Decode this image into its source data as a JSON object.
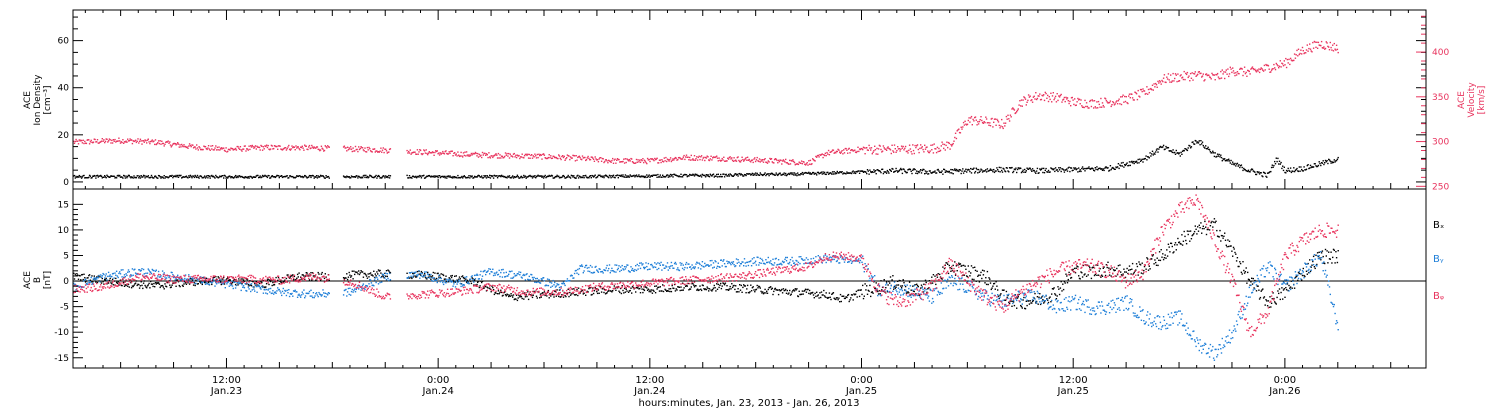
{
  "colors": {
    "black": "#000000",
    "pink": "#e8345e",
    "blue": "#1f7fd8"
  },
  "x_axis": {
    "label": "hours:minutes, Jan. 23, 2013 - Jan. 26, 2013",
    "ticks": [
      {
        "t": 12,
        "time": "12:00",
        "day": "Jan.23"
      },
      {
        "t": 24,
        "time": "0:00",
        "day": "Jan.24"
      },
      {
        "t": 36,
        "time": "12:00",
        "day": "Jan.24"
      },
      {
        "t": 48,
        "time": "0:00",
        "day": "Jan.25"
      },
      {
        "t": 60,
        "time": "12:00",
        "day": "Jan.25"
      },
      {
        "t": 72,
        "time": "0:00",
        "day": "Jan.26"
      }
    ],
    "xlim": [
      3.3,
      80
    ]
  },
  "chart_data": [
    {
      "type": "scatter",
      "panel": "top",
      "ylabel_left": [
        "ACE",
        "Ion Density",
        "[cm⁻³]"
      ],
      "ylabel_right": [
        "ACE",
        "Velocity",
        "[km/s]"
      ],
      "ylim_left": [
        -3,
        73
      ],
      "yticks_left": [
        0,
        20,
        40,
        60
      ],
      "ylim_right": [
        247,
        447
      ],
      "yticks_right": [
        250,
        300,
        350,
        400
      ],
      "series": [
        {
          "axis": "left",
          "color": "black",
          "points": [
            [
              3.3,
              2.5
            ],
            [
              8,
              2.5
            ],
            [
              12,
              2.5
            ],
            [
              16,
              2.5
            ],
            [
              20,
              2.5
            ],
            [
              24,
              2.5
            ],
            [
              28,
              2.5
            ],
            [
              32,
              2.5
            ],
            [
              36,
              2.8
            ],
            [
              38,
              3
            ],
            [
              40,
              3
            ],
            [
              42,
              3.5
            ],
            [
              44,
              3.5
            ],
            [
              46,
              4
            ],
            [
              48,
              4.5
            ],
            [
              50,
              5
            ],
            [
              52,
              4.5
            ],
            [
              54,
              5
            ],
            [
              56,
              5.5
            ],
            [
              58,
              5
            ],
            [
              60,
              5.5
            ],
            [
              62,
              6
            ],
            [
              63,
              8
            ],
            [
              64,
              10
            ],
            [
              65,
              15
            ],
            [
              66,
              12
            ],
            [
              67,
              18
            ],
            [
              68,
              12
            ],
            [
              69,
              8
            ],
            [
              70,
              5
            ],
            [
              71,
              3
            ],
            [
              71.5,
              10
            ],
            [
              72,
              5
            ],
            [
              73,
              6
            ],
            [
              74,
              8
            ],
            [
              75,
              10
            ]
          ]
        },
        {
          "axis": "right",
          "color": "pink",
          "points": [
            [
              3.3,
              300
            ],
            [
              6,
              302
            ],
            [
              8,
              300
            ],
            [
              10,
              295
            ],
            [
              12,
              292
            ],
            [
              14,
              294
            ],
            [
              16,
              294
            ],
            [
              18,
              293
            ],
            [
              20,
              292
            ],
            [
              22,
              290
            ],
            [
              24,
              288
            ],
            [
              26,
              286
            ],
            [
              28,
              285
            ],
            [
              30,
              284
            ],
            [
              32,
              282
            ],
            [
              34,
              279
            ],
            [
              36,
              279
            ],
            [
              38,
              283
            ],
            [
              40,
              282
            ],
            [
              42,
              280
            ],
            [
              44,
              278
            ],
            [
              45,
              277
            ],
            [
              46,
              288
            ],
            [
              48,
              292
            ],
            [
              50,
              292
            ],
            [
              52,
              293
            ],
            [
              53,
              297
            ],
            [
              54,
              325
            ],
            [
              55,
              323
            ],
            [
              56,
              320
            ],
            [
              57,
              345
            ],
            [
              58,
              352
            ],
            [
              59,
              350
            ],
            [
              60,
              345
            ],
            [
              61,
              343
            ],
            [
              62,
              345
            ],
            [
              63,
              348
            ],
            [
              64,
              355
            ],
            [
              65,
              370
            ],
            [
              66,
              373
            ],
            [
              67,
              375
            ],
            [
              68,
              372
            ],
            [
              69,
              380
            ],
            [
              70,
              378
            ],
            [
              71,
              383
            ],
            [
              72,
              388
            ],
            [
              73,
              403
            ],
            [
              74,
              410
            ],
            [
              75,
              405
            ]
          ]
        }
      ]
    },
    {
      "type": "scatter",
      "panel": "bottom",
      "ylabel_left": [
        "ACE",
        "B",
        "[nT]"
      ],
      "ylim": [
        -17,
        18
      ],
      "yticks": [
        -15,
        -10,
        -5,
        0,
        5,
        10,
        15
      ],
      "zero_line": true,
      "legend": [
        "Bₓ",
        "Bᵧ",
        "Bᵩ"
      ],
      "series": [
        {
          "name": "Bₓ",
          "color": "black",
          "points": [
            [
              3.3,
              1
            ],
            [
              6,
              -0.2
            ],
            [
              8,
              -0.8
            ],
            [
              10,
              0
            ],
            [
              12,
              0.3
            ],
            [
              14,
              -0.5
            ],
            [
              16,
              1
            ],
            [
              18,
              1
            ],
            [
              20,
              1.5
            ],
            [
              22,
              1.5
            ],
            [
              24,
              1
            ],
            [
              26,
              0
            ],
            [
              28,
              -3
            ],
            [
              30,
              -2.5
            ],
            [
              32,
              -2
            ],
            [
              34,
              -1.5
            ],
            [
              36,
              -1.5
            ],
            [
              38,
              -1
            ],
            [
              40,
              -1
            ],
            [
              42,
              -1.5
            ],
            [
              44,
              -2
            ],
            [
              46,
              -2.5
            ],
            [
              47,
              -3.5
            ],
            [
              48,
              -2
            ],
            [
              49,
              -1
            ],
            [
              50,
              0
            ],
            [
              51,
              -2
            ],
            [
              52,
              0
            ],
            [
              53,
              3
            ],
            [
              54,
              2
            ],
            [
              55,
              1
            ],
            [
              56,
              -3
            ],
            [
              57,
              -4
            ],
            [
              58,
              -3.5
            ],
            [
              59,
              -2
            ],
            [
              60,
              2
            ],
            [
              61,
              2
            ],
            [
              62,
              2.5
            ],
            [
              63,
              2
            ],
            [
              64,
              3
            ],
            [
              65,
              5
            ],
            [
              66,
              8
            ],
            [
              67,
              10
            ],
            [
              68,
              11
            ],
            [
              69,
              6
            ],
            [
              70,
              0
            ],
            [
              71,
              -4
            ],
            [
              72,
              -2
            ],
            [
              73,
              2
            ],
            [
              74,
              5
            ],
            [
              75,
              5
            ]
          ]
        },
        {
          "name": "Bᵧ",
          "color": "blue",
          "points": [
            [
              3.3,
              -1
            ],
            [
              5,
              1
            ],
            [
              7,
              2
            ],
            [
              9,
              1
            ],
            [
              11,
              0
            ],
            [
              13,
              -1
            ],
            [
              15,
              -2
            ],
            [
              17,
              -2.5
            ],
            [
              19,
              -2
            ],
            [
              21,
              1
            ],
            [
              23,
              1.5
            ],
            [
              25,
              -0.5
            ],
            [
              27,
              2
            ],
            [
              29,
              1
            ],
            [
              31,
              -1
            ],
            [
              32,
              2.5
            ],
            [
              34,
              2.5
            ],
            [
              36,
              3
            ],
            [
              38,
              3
            ],
            [
              40,
              3.5
            ],
            [
              42,
              4
            ],
            [
              44,
              4
            ],
            [
              46,
              4.5
            ],
            [
              48,
              4
            ],
            [
              49,
              -2
            ],
            [
              50,
              -1
            ],
            [
              51,
              -2
            ],
            [
              52,
              -3
            ],
            [
              53,
              0
            ],
            [
              54,
              -1
            ],
            [
              55,
              -3
            ],
            [
              56,
              -4
            ],
            [
              57,
              -3
            ],
            [
              58,
              -3
            ],
            [
              59,
              -5
            ],
            [
              60,
              -4
            ],
            [
              61,
              -5
            ],
            [
              62,
              -5
            ],
            [
              63,
              -4
            ],
            [
              64,
              -7
            ],
            [
              65,
              -8
            ],
            [
              66,
              -7
            ],
            [
              67,
              -12
            ],
            [
              68,
              -14
            ],
            [
              69,
              -10
            ],
            [
              70,
              -2
            ],
            [
              71,
              3
            ],
            [
              72,
              -1
            ],
            [
              73,
              2
            ],
            [
              74,
              5
            ],
            [
              75,
              -9
            ]
          ]
        },
        {
          "name": "Bᵩ",
          "color": "pink",
          "points": [
            [
              3.3,
              -1.5
            ],
            [
              5,
              -1
            ],
            [
              7,
              1
            ],
            [
              9,
              0.5
            ],
            [
              11,
              0.5
            ],
            [
              13,
              0.5
            ],
            [
              15,
              0.3
            ],
            [
              17,
              1
            ],
            [
              19,
              0
            ],
            [
              21,
              -3
            ],
            [
              23,
              -2.5
            ],
            [
              25,
              -2
            ],
            [
              27,
              -1
            ],
            [
              29,
              -2
            ],
            [
              31,
              -2
            ],
            [
              33,
              -1
            ],
            [
              35,
              -0.5
            ],
            [
              37,
              0
            ],
            [
              39,
              0.5
            ],
            [
              41,
              1
            ],
            [
              43,
              2
            ],
            [
              45,
              3
            ],
            [
              46,
              5
            ],
            [
              47,
              5
            ],
            [
              48,
              4.5
            ],
            [
              49,
              -2
            ],
            [
              50,
              -4
            ],
            [
              51,
              -3
            ],
            [
              52,
              -1
            ],
            [
              53,
              3.5
            ],
            [
              54,
              0
            ],
            [
              55,
              -3
            ],
            [
              56,
              -5
            ],
            [
              57,
              -2
            ],
            [
              58,
              0
            ],
            [
              59,
              2
            ],
            [
              60,
              3
            ],
            [
              61,
              3
            ],
            [
              62,
              2
            ],
            [
              63,
              0
            ],
            [
              64,
              2
            ],
            [
              65,
              10
            ],
            [
              66,
              14
            ],
            [
              67,
              16
            ],
            [
              68,
              8
            ],
            [
              69,
              0
            ],
            [
              70,
              -10
            ],
            [
              71,
              -6
            ],
            [
              72,
              5
            ],
            [
              73,
              8
            ],
            [
              74,
              10
            ],
            [
              75,
              10
            ]
          ]
        }
      ]
    }
  ]
}
